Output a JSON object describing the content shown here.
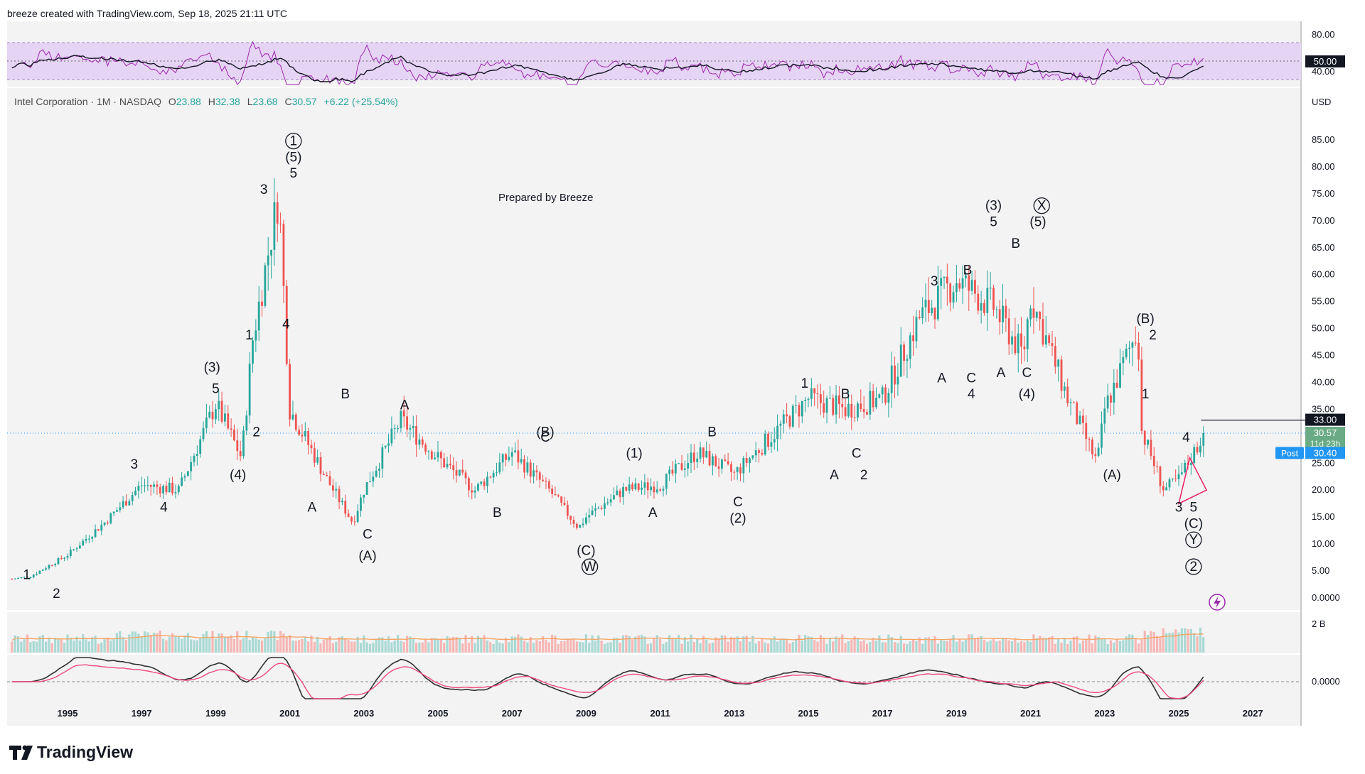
{
  "header": {
    "author_line": "breeze created with TradingView.com, Sep 18, 2025 21:11 UTC",
    "symbol": "Intel Corporation · 1M · NASDAQ",
    "ohlc": {
      "o_label": "O",
      "o": "23.88",
      "h_label": "H",
      "h": "32.38",
      "l_label": "L",
      "l": "23.68",
      "c_label": "C",
      "c": "30.57",
      "change": "+6.22 (+25.54%)"
    }
  },
  "annotation": {
    "prepared_by": "Prepared by Breeze"
  },
  "footer": {
    "logo": "TradingView"
  },
  "colors": {
    "up": "#26a69a",
    "down": "#ef5350",
    "ma": "#f7a35c",
    "rsi_line": "#9c27b0",
    "rsi_band": "#e6d4f5",
    "macd_line": "#ef4a7a",
    "signal": "#ef4a7a",
    "price_tag_green": "#6aab85",
    "post_tag_blue": "#2196f3",
    "triangle": "#e91e63"
  },
  "price_axis": {
    "currency": "USD",
    "ticks": [
      "85.00",
      "80.00",
      "75.00",
      "70.00",
      "65.00",
      "60.00",
      "55.00",
      "50.00",
      "45.00",
      "40.00",
      "35.00",
      "30.00",
      "25.00",
      "20.00",
      "15.00",
      "10.00",
      "5.00",
      "0.0000"
    ]
  },
  "rsi_axis": {
    "ticks": [
      "80.00",
      "40.00"
    ],
    "mid_tag": "50.00"
  },
  "volume_axis": {
    "tick": "2 B"
  },
  "macd_axis": {
    "tick": "0.0000"
  },
  "tags": {
    "level_33": "33.00",
    "last_price": "30.57",
    "countdown": "11d 23h",
    "post_label": "Post",
    "post_price": "30.40"
  },
  "x_axis": {
    "years": [
      "1995",
      "1997",
      "1999",
      "2001",
      "2003",
      "2005",
      "2007",
      "2009",
      "2011",
      "2013",
      "2015",
      "2017",
      "2019",
      "2021",
      "2023",
      "2025",
      "2027"
    ]
  },
  "chart_data": {
    "type": "candlestick",
    "title": "Intel Corporation · 1M · NASDAQ",
    "xlabel": "",
    "ylabel": "",
    "ylim": [
      0,
      85
    ],
    "grid": false,
    "series": [
      {
        "name": "Close",
        "x": [
          1993.5,
          1994,
          1995,
          1996,
          1997,
          1998,
          1999,
          1999.7,
          2000,
          2000.7,
          2001,
          2002,
          2002.7,
          2003,
          2004,
          2005,
          2006,
          2007,
          2008,
          2008.8,
          2009,
          2010,
          2011,
          2012,
          2013,
          2014,
          2015,
          2016,
          2017,
          2018,
          2019,
          2020,
          2020.8,
          2021,
          2022,
          2022.8,
          2023,
          2023.9,
          2024,
          2024.6,
          2025,
          2025.7
        ],
        "values": [
          3.5,
          4,
          8,
          14,
          21,
          20,
          36,
          26,
          48,
          75,
          35,
          22,
          14,
          20,
          33,
          26,
          20,
          27,
          20,
          13,
          15,
          20,
          21,
          27,
          23,
          30,
          37,
          35,
          37,
          52,
          59,
          54,
          45,
          56,
          37,
          25,
          35,
          50,
          31,
          20,
          22,
          30.57
        ]
      }
    ],
    "reference_lines": [
      {
        "label": "33.00",
        "value": 33
      }
    ],
    "wave_labels": [
      {
        "text": "1",
        "x": 1993.9,
        "y": 3.5
      },
      {
        "text": "2",
        "x": 1994.7,
        "y": 0
      },
      {
        "text": "3",
        "x": 1996.8,
        "y": 24
      },
      {
        "text": "4",
        "x": 1997.6,
        "y": 16
      },
      {
        "text": "(4)",
        "x": 1999.6,
        "y": 22
      },
      {
        "text": "5",
        "x": 1999,
        "y": 38
      },
      {
        "text": "(3)",
        "x": 1998.9,
        "y": 42
      },
      {
        "text": "1",
        "x": 1999.9,
        "y": 48
      },
      {
        "text": "2",
        "x": 2000.1,
        "y": 30
      },
      {
        "text": "3",
        "x": 2000.3,
        "y": 75
      },
      {
        "text": "4",
        "x": 2000.9,
        "y": 50
      },
      {
        "text": "5",
        "x": 2001.1,
        "y": 78
      },
      {
        "text": "(5)",
        "x": 2001.1,
        "y": 81
      },
      {
        "text": "1",
        "x": 2001.1,
        "y": 84,
        "circled": true
      },
      {
        "text": "A",
        "x": 2001.6,
        "y": 16
      },
      {
        "text": "B",
        "x": 2002.5,
        "y": 37
      },
      {
        "text": "C",
        "x": 2003.1,
        "y": 11
      },
      {
        "text": "(A)",
        "x": 2003.1,
        "y": 7
      },
      {
        "text": "A",
        "x": 2004.1,
        "y": 35
      },
      {
        "text": "B",
        "x": 2006.6,
        "y": 15
      },
      {
        "text": "(B)",
        "x": 2007.9,
        "y": 30
      },
      {
        "text": "C",
        "x": 2007.9,
        "y": 29
      },
      {
        "text": "(C)",
        "x": 2009,
        "y": 8
      },
      {
        "text": "W",
        "x": 2009.1,
        "y": 5,
        "circled": true
      },
      {
        "text": "(1)",
        "x": 2010.3,
        "y": 26
      },
      {
        "text": "A",
        "x": 2010.8,
        "y": 15
      },
      {
        "text": "B",
        "x": 2012.4,
        "y": 30
      },
      {
        "text": "C",
        "x": 2013.1,
        "y": 17
      },
      {
        "text": "(2)",
        "x": 2013.1,
        "y": 14
      },
      {
        "text": "1",
        "x": 2014.9,
        "y": 39
      },
      {
        "text": "A",
        "x": 2015.7,
        "y": 22
      },
      {
        "text": "B",
        "x": 2016,
        "y": 37
      },
      {
        "text": "C",
        "x": 2016.3,
        "y": 26
      },
      {
        "text": "2",
        "x": 2016.5,
        "y": 22
      },
      {
        "text": "3",
        "x": 2018.4,
        "y": 58
      },
      {
        "text": "A",
        "x": 2018.6,
        "y": 40
      },
      {
        "text": "B",
        "x": 2019.3,
        "y": 60
      },
      {
        "text": "C",
        "x": 2019.4,
        "y": 40
      },
      {
        "text": "4",
        "x": 2019.4,
        "y": 37
      },
      {
        "text": "(3)",
        "x": 2020,
        "y": 72
      },
      {
        "text": "5",
        "x": 2020,
        "y": 69
      },
      {
        "text": "A",
        "x": 2020.2,
        "y": 41
      },
      {
        "text": "B",
        "x": 2020.6,
        "y": 65
      },
      {
        "text": "C",
        "x": 2020.9,
        "y": 41
      },
      {
        "text": "(4)",
        "x": 2020.9,
        "y": 37
      },
      {
        "text": "(5)",
        "x": 2021.2,
        "y": 69
      },
      {
        "text": "X",
        "x": 2021.3,
        "y": 72,
        "circled": true
      },
      {
        "text": "(A)",
        "x": 2023.2,
        "y": 22
      },
      {
        "text": "(B)",
        "x": 2024.1,
        "y": 51
      },
      {
        "text": "2",
        "x": 2024.3,
        "y": 48
      },
      {
        "text": "1",
        "x": 2024.1,
        "y": 37
      },
      {
        "text": "4",
        "x": 2025.2,
        "y": 29
      },
      {
        "text": "3",
        "x": 2025,
        "y": 16
      },
      {
        "text": "5",
        "x": 2025.4,
        "y": 16
      },
      {
        "text": "(C)",
        "x": 2025.4,
        "y": 13
      },
      {
        "text": "Y",
        "x": 2025.4,
        "y": 10,
        "circled": true
      },
      {
        "text": "2",
        "x": 2025.4,
        "y": 5,
        "circled": true
      }
    ]
  }
}
